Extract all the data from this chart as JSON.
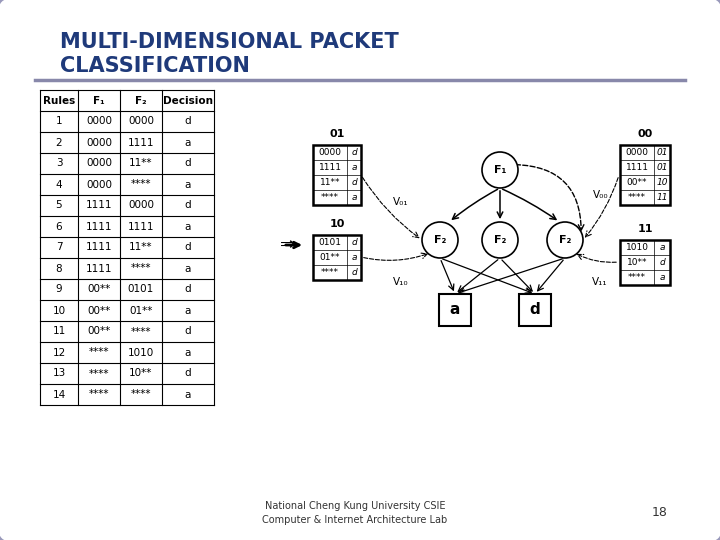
{
  "title_line1": "MULTI-DIMENSIONAL PACKET",
  "title_line2": "CLASSIFICATION",
  "title_color": "#1F3A7A",
  "bg_color": "#C8C8D8",
  "footer_text": "National Cheng Kung University CSIE\nComputer & Internet Architecture Lab",
  "page_num": "18",
  "table_headers": [
    "Rules",
    "F₁",
    "F₂",
    "Decision"
  ],
  "table_rows": [
    [
      "1",
      "0000",
      "0000",
      "d"
    ],
    [
      "2",
      "0000",
      "1111",
      "a"
    ],
    [
      "3",
      "0000",
      "11**",
      "d"
    ],
    [
      "4",
      "0000",
      "****",
      "a"
    ],
    [
      "5",
      "1111",
      "0000",
      "d"
    ],
    [
      "6",
      "1111",
      "1111",
      "a"
    ],
    [
      "7",
      "1111",
      "11**",
      "d"
    ],
    [
      "8",
      "1111",
      "****",
      "a"
    ],
    [
      "9",
      "00**",
      "0101",
      "d"
    ],
    [
      "10",
      "00**",
      "01**",
      "a"
    ],
    [
      "11",
      "00**",
      "****",
      "d"
    ],
    [
      "12",
      "****",
      "1010",
      "a"
    ],
    [
      "13",
      "****",
      "10**",
      "d"
    ],
    [
      "14",
      "****",
      "****",
      "a"
    ]
  ],
  "node01_rows": [
    [
      "0000",
      "d"
    ],
    [
      "1111",
      "a"
    ],
    [
      "11**",
      "d"
    ],
    [
      "****",
      "a"
    ]
  ],
  "node10_rows": [
    [
      "0101",
      "d"
    ],
    [
      "01**",
      "a"
    ],
    [
      "****",
      "d"
    ]
  ],
  "node00_rows": [
    [
      "0000",
      "01"
    ],
    [
      "1111",
      "01"
    ],
    [
      "00**",
      "10"
    ],
    [
      "****",
      "11"
    ]
  ],
  "node11_rows": [
    [
      "1010",
      "a"
    ],
    [
      "10**",
      "d"
    ],
    [
      "****",
      "a"
    ]
  ],
  "node_r": 18,
  "leaf_r": 16
}
